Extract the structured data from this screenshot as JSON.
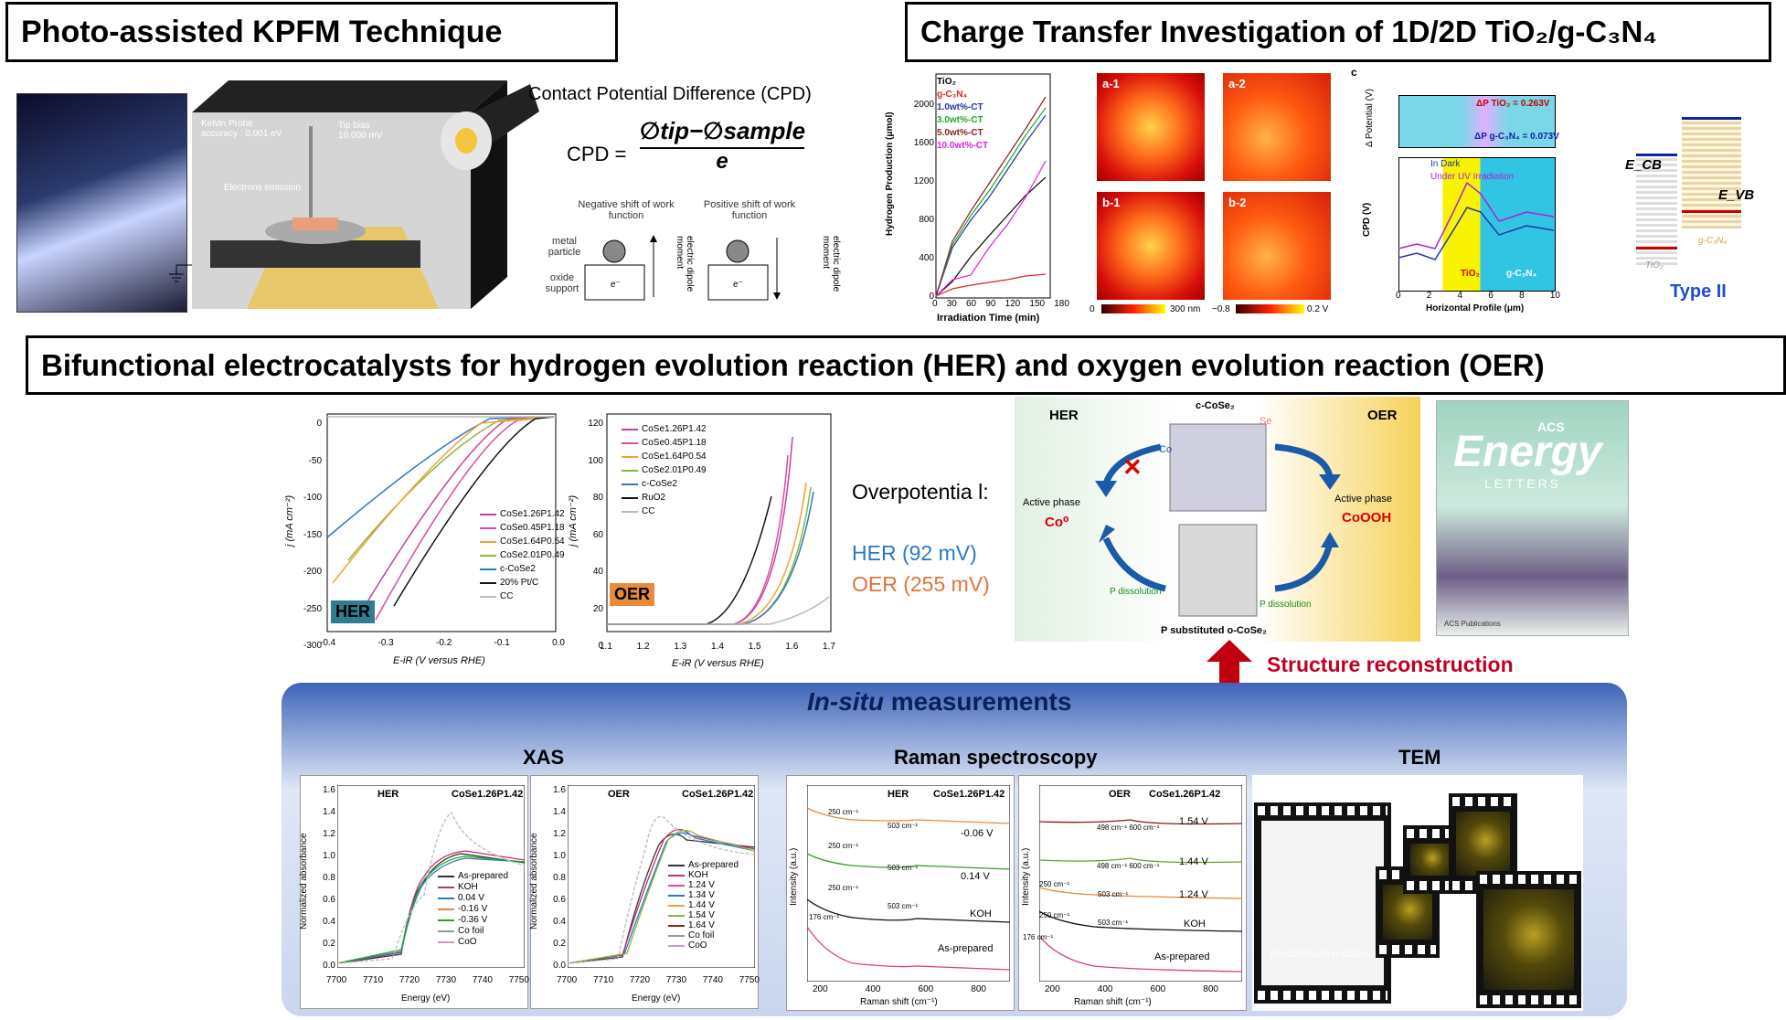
{
  "kpfm": {
    "title": "Photo-assisted KPFM Technique",
    "probe_label": "Kelvin Probe",
    "probe_accuracy": "accuracy : 0.001 eV",
    "tip_bias_label": "Tip bias",
    "tip_bias_value": "10,000 mV",
    "electrons_label": "Electrons emission",
    "cpd_heading": "Contact Potential Difference (CPD)",
    "cpd_lhs": "CPD =",
    "cpd_numerator": "∅tip−∅sample",
    "cpd_denominator": "e",
    "neg_shift": "Negative shift of work function",
    "pos_shift": "Positive shift of work function",
    "metal_particle": "metal particle",
    "oxide_support": "oxide support",
    "dipole": "electric dipole moment",
    "electron": "e⁻"
  },
  "charge": {
    "title": "Charge Transfer Investigation of 1D/2D TiO₂/g-C₃N₄",
    "h2_chart": {
      "ylabel": "Hydrogen Production (μmol)",
      "xlabel": "Irradiation Time (min)",
      "xticks": [
        "0",
        "30",
        "60",
        "90",
        "120",
        "150",
        "180"
      ],
      "yticks": [
        "0",
        "400",
        "800",
        "1200",
        "1600",
        "2000"
      ],
      "legend": [
        "TiO₂",
        "g-C₃N₄",
        "1.0wt%-CT",
        "3.0wt%-CT",
        "5.0wt%-CT",
        "10.0wt%-CT"
      ]
    },
    "maps": [
      "a-1",
      "a-2",
      "b-1",
      "b-2"
    ],
    "scale_left": "0",
    "scale_left_end": "300 nm",
    "scale_right": "−0.8",
    "scale_right_end": "0.2 V",
    "cpd_panel": {
      "tag": "c",
      "top_ylabel": "Δ Potential (V)",
      "dp1": "ΔP TiO₂ = 0.263V",
      "dp2": "ΔP g-C₃N₄ = 0.073V",
      "legend1": "In Dark",
      "legend2": "Under UV Irradiation",
      "ylabel": "CPD (V)",
      "xlabel": "Horizontal Profile (μm)",
      "region1": "TiO₂",
      "region2": "g-C₃N₄",
      "xticks": [
        "0",
        "2",
        "4",
        "6",
        "8",
        "10"
      ]
    },
    "band": {
      "ecb": "E_CB",
      "evb": "E_VB",
      "tio2": "TiO₂",
      "gcn": "g-C₃N₄",
      "type": "Type II"
    }
  },
  "bifunctional": {
    "title": "Bifunctional electrocatalysts for hydrogen evolution reaction (HER) and oxygen evolution reaction (OER)",
    "her_chart": {
      "tag": "HER",
      "ylabel": "j (mA cm⁻²)",
      "xlabel": "E-iR (V versus RHE)",
      "yticks": [
        "0",
        "-50",
        "-100",
        "-150",
        "-200",
        "-250",
        "-300"
      ],
      "xticks": [
        "-0.4",
        "-0.3",
        "-0.2",
        "-0.1",
        "0.0"
      ],
      "legend": [
        "CoSe1.26P1.42",
        "CoSe0.45P1.18",
        "CoSe1.64P0.54",
        "CoSe2.01P0.49",
        "c-CoSe2",
        "20% Pt/C",
        "CC"
      ]
    },
    "oer_chart": {
      "tag": "OER",
      "ylabel": "j (mA cm⁻²)",
      "xlabel": "E-iR (V versus RHE)",
      "yticks": [
        "120",
        "100",
        "80",
        "60",
        "40",
        "20",
        "0"
      ],
      "xticks": [
        "1.1",
        "1.2",
        "1.3",
        "1.4",
        "1.5",
        "1.6",
        "1.7"
      ],
      "legend": [
        "CoSe1.26P1.42",
        "CoSe0.45P1.18",
        "CoSe1.64P0.54",
        "CoSe2.01P0.49",
        "c-CoSe2",
        "RuO2",
        "CC"
      ]
    },
    "overpotential_label": "Overpotentia l:",
    "her_value": "HER (92 mV)",
    "oer_value": "OER (255 mV)",
    "scheme": {
      "her": "HER",
      "oer": "OER",
      "c_cose2": "c-CoSe₂",
      "se": "Se",
      "co": "Co",
      "active_left": "Active phase",
      "active_left_val": "Co⁰",
      "active_right": "Active phase",
      "active_right_val": "CoOOH",
      "p_diss1": "P dissolution",
      "p_diss2": "P dissolution",
      "bottom": "P substituted o-CoSe₂"
    },
    "cover": {
      "acs": "ACS",
      "energy": "Energy",
      "letters": "LETTERS",
      "pub": "ACS Publications"
    },
    "reconstruction": "Structure reconstruction"
  },
  "insitu": {
    "title_italic": "In-situ",
    "title_rest": " measurements",
    "xas": "XAS",
    "raman": "Raman spectroscopy",
    "tem": "TEM",
    "xas_her": {
      "mode": "HER",
      "sample": "CoSe1.26P1.42",
      "ylabel": "Normalized absorbance",
      "xlabel": "Energy (eV)",
      "yticks": [
        "1.6",
        "1.4",
        "1.2",
        "1.0",
        "0.8",
        "0.6",
        "0.4",
        "0.2",
        "0.0"
      ],
      "xticks": [
        "7700",
        "7710",
        "7720",
        "7730",
        "7740",
        "7750"
      ],
      "legend": [
        "As-prepared",
        "KOH",
        "0.04 V",
        "-0.16 V",
        "-0.36 V",
        "Co foil",
        "CoO"
      ]
    },
    "xas_oer": {
      "mode": "OER",
      "sample": "CoSe1.26P1.42",
      "ylabel": "Normalized absorbance",
      "xlabel": "Energy (eV)",
      "yticks": [
        "1.6",
        "1.4",
        "1.2",
        "1.0",
        "0.8",
        "0.6",
        "0.4",
        "0.2",
        "0.0"
      ],
      "xticks": [
        "7700",
        "7710",
        "7720",
        "7730",
        "7740",
        "7750"
      ],
      "legend": [
        "As-prepared",
        "KOH",
        "1.24 V",
        "1.34 V",
        "1.44 V",
        "1.54 V",
        "1.64 V",
        "Co foil",
        "CoO"
      ]
    },
    "raman_her": {
      "mode": "HER",
      "sample": "CoSe1.26P1.42",
      "ylabel": "Intensity (a.u.)",
      "xlabel": "Raman shift (cm⁻¹)",
      "xticks": [
        "200",
        "400",
        "600",
        "800"
      ],
      "labels": [
        "-0.06 V",
        "0.14 V",
        "KOH",
        "As-prepared"
      ],
      "peaks": [
        "250 cm⁻¹",
        "503 cm⁻¹",
        "250 cm⁻¹",
        "503 cm⁻¹",
        "250 cm⁻¹",
        "503 cm⁻¹",
        "176 cm⁻¹"
      ]
    },
    "raman_oer": {
      "mode": "OER",
      "sample": "CoSe1.26P1.42",
      "ylabel": "Intensity (a.u.)",
      "xlabel": "Raman shift (cm⁻¹)",
      "xticks": [
        "200",
        "400",
        "600",
        "800"
      ],
      "labels": [
        "1.54 V",
        "1.44 V",
        "1.24 V",
        "KOH",
        "As-prepared"
      ],
      "peaks": [
        "498 cm⁻¹ 600 cm⁻¹",
        "498 cm⁻¹ 600 cm⁻¹",
        "250 cm⁻¹",
        "503 cm⁻¹",
        "250 cm⁻¹",
        "503 cm⁻¹",
        "176 cm⁻¹"
      ]
    },
    "tem_label": "P-substituted o-CoSe₂"
  }
}
